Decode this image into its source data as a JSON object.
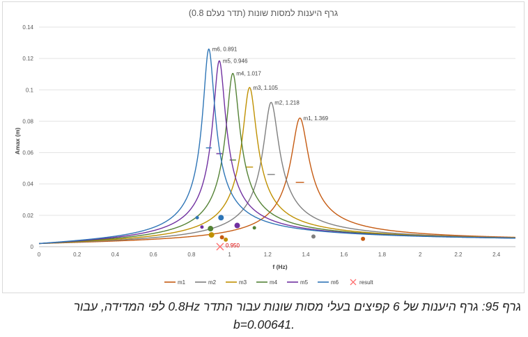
{
  "chart_data": {
    "type": "line",
    "title": "גרף היענות למסות שונות (תדר נעלם 0.8)",
    "xlabel": "f (Hz)",
    "ylabel": "Amax (m)",
    "xlim": [
      0,
      2.5
    ],
    "ylim": [
      0,
      0.14
    ],
    "x_ticks": [
      "0",
      "0.2",
      "0.4",
      "0.6",
      "0.8",
      "1",
      "1.2",
      "1.4",
      "1.6",
      "1.8",
      "2",
      "2.2",
      "2.4"
    ],
    "y_ticks": [
      "0",
      "0.02",
      "0.04",
      "0.06",
      "0.08",
      "0.1",
      "0.12",
      "0.14"
    ],
    "grid": true,
    "legend_position": "bottom",
    "baseline": 0.002,
    "series": [
      {
        "name": "m1",
        "color": "#c55a11",
        "f0": 1.369,
        "peak": 0.082,
        "label": "m1, 1.369",
        "marker_x": 1.7,
        "marker_y": 0.005,
        "marker_size": 3
      },
      {
        "name": "m2",
        "color": "#7f7f7f",
        "f0": 1.218,
        "peak": 0.092,
        "label": "m2, 1.218",
        "marker_x": 1.44,
        "marker_y": 0.0065,
        "marker_size": 3
      },
      {
        "name": "m3",
        "color": "#bf9000",
        "f0": 1.105,
        "peak": 0.1015,
        "label": "m3, 1.105",
        "marker_x": 0.905,
        "marker_y": 0.0075,
        "marker_size": 4
      },
      {
        "name": "m4",
        "color": "#548235",
        "f0": 1.017,
        "peak": 0.1105,
        "label": "m4, 1.017",
        "marker_x": 0.9,
        "marker_y": 0.0115,
        "marker_size": 4
      },
      {
        "name": "m5",
        "color": "#7030a0",
        "f0": 0.946,
        "peak": 0.1185,
        "label": "m5, 0.946",
        "marker_x": 1.04,
        "marker_y": 0.0135,
        "marker_size": 4
      },
      {
        "name": "m6",
        "color": "#2e75b6",
        "f0": 0.891,
        "peak": 0.126,
        "label": "m6, 0.891",
        "marker_x": 0.955,
        "marker_y": 0.0185,
        "marker_size": 4
      }
    ],
    "extra_markers": [
      {
        "color": "#7030a0",
        "x": 0.855,
        "y": 0.0125,
        "size": 2.5
      },
      {
        "color": "#2e75b6",
        "x": 0.83,
        "y": 0.0185,
        "size": 2.5
      },
      {
        "color": "#bf9000",
        "x": 0.98,
        "y": 0.0045,
        "size": 3
      },
      {
        "color": "#c55a11",
        "x": 0.96,
        "y": 0.006,
        "size": 3
      },
      {
        "color": "#548235",
        "x": 1.13,
        "y": 0.012,
        "size": 2.5
      }
    ],
    "result": {
      "name": "result",
      "x": 0.95,
      "y": 0.0,
      "label": "0.950",
      "color": "#ff6b6b"
    }
  },
  "caption": {
    "line1": "גרף 95: גרף היענות של 6 קפיצים בעלי מסות שונות עבור התדר 0.8Hz לפי המדידה, עבור",
    "line2": "b=0.00641."
  }
}
